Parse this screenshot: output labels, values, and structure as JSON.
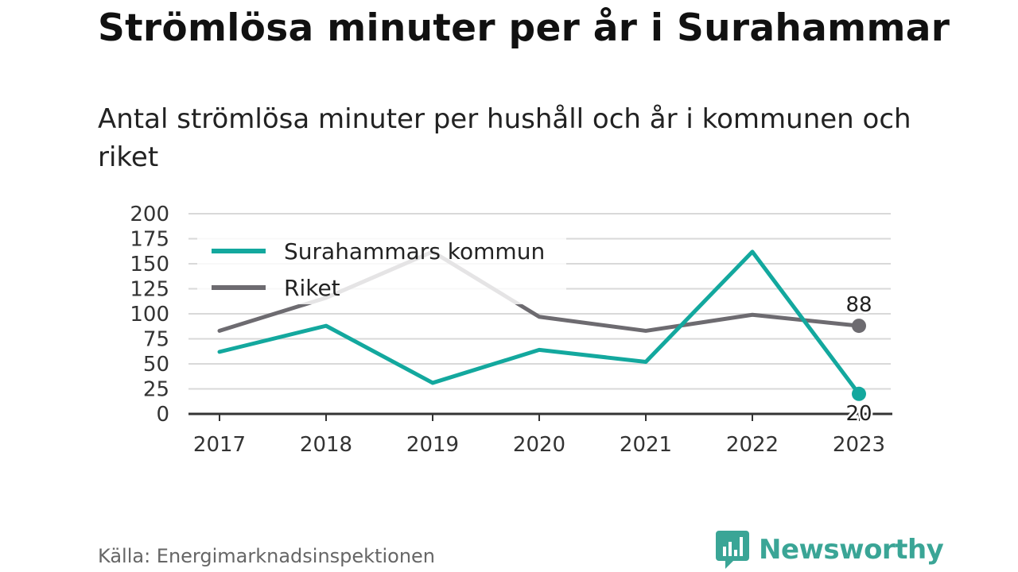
{
  "header": {
    "title": "Strömlösa minuter per år i Surahammar",
    "subtitle": "Antal strömlösa minuter per hushåll och år i kommunen och riket"
  },
  "footer": {
    "source": "Källa: Energimarknadsinspektionen",
    "brand": "Newsworthy"
  },
  "colors": {
    "kommun": "#13a89e",
    "riket": "#6d6b70",
    "grid": "#d9d9d9",
    "axis": "#333333",
    "brand": "#3aa596"
  },
  "chart_data": {
    "type": "line",
    "categories": [
      "2017",
      "2018",
      "2019",
      "2020",
      "2021",
      "2022",
      "2023"
    ],
    "ylim": [
      0,
      200
    ],
    "yticks": [
      0,
      25,
      50,
      75,
      100,
      125,
      150,
      175,
      200
    ],
    "grid": true,
    "legend_position": "top-left",
    "series": [
      {
        "name": "Surahammars kommun",
        "color": "#13a89e",
        "values": [
          62,
          88,
          31,
          64,
          52,
          162,
          20
        ]
      },
      {
        "name": "Riket",
        "color": "#6d6b70",
        "values": [
          83,
          116,
          162,
          97,
          83,
          99,
          88
        ]
      }
    ],
    "end_labels": [
      {
        "series": 0,
        "text": "20",
        "position": "below"
      },
      {
        "series": 1,
        "text": "88",
        "position": "above"
      }
    ]
  }
}
